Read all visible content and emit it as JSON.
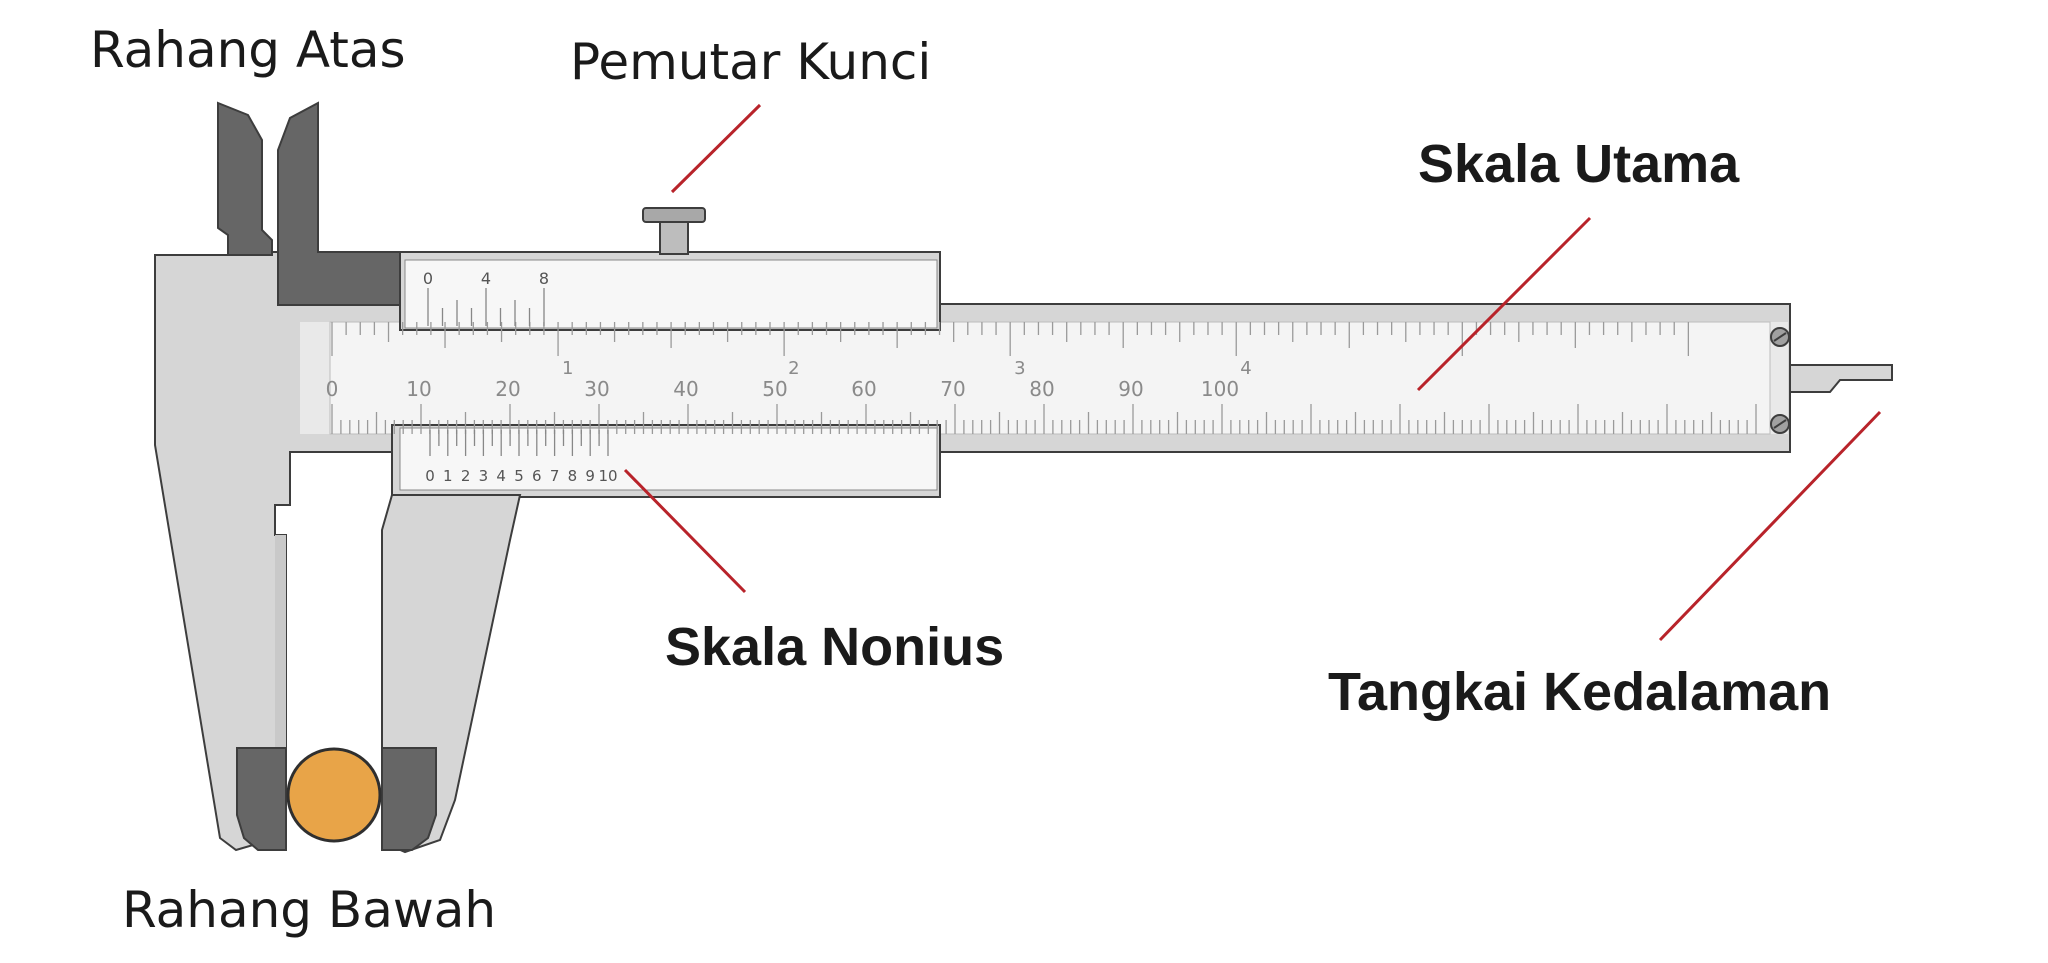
{
  "labels": {
    "upper_jaw": "Rahang Atas",
    "lock_screw": "Pemutar Kunci",
    "main_scale": "Skala Utama",
    "vernier_scale": "Skala Nonius",
    "depth_rod": "Tangkai Kedalaman",
    "lower_jaw": "Rahang Bawah"
  },
  "main_scale": {
    "cm_numbers": [
      "0",
      "10",
      "20",
      "30",
      "40",
      "50",
      "60",
      "70",
      "80",
      "90",
      "100"
    ],
    "inch_numbers": [
      "1",
      "2",
      "3",
      "4"
    ]
  },
  "vernier": {
    "inch_numbers": [
      "0",
      "4",
      "8"
    ],
    "mm_numbers": [
      "0",
      "1",
      "2",
      "3",
      "4",
      "5",
      "6",
      "7",
      "8",
      "9",
      "10"
    ]
  },
  "colors": {
    "body": "#d6d6d6",
    "body_light": "#e9e9e9",
    "jaw_dark": "#666666",
    "scale_strip": "#f4f4f4",
    "pointer_line": "#b8232a",
    "object": "#e8a448",
    "outline": "#3d3d3d"
  }
}
